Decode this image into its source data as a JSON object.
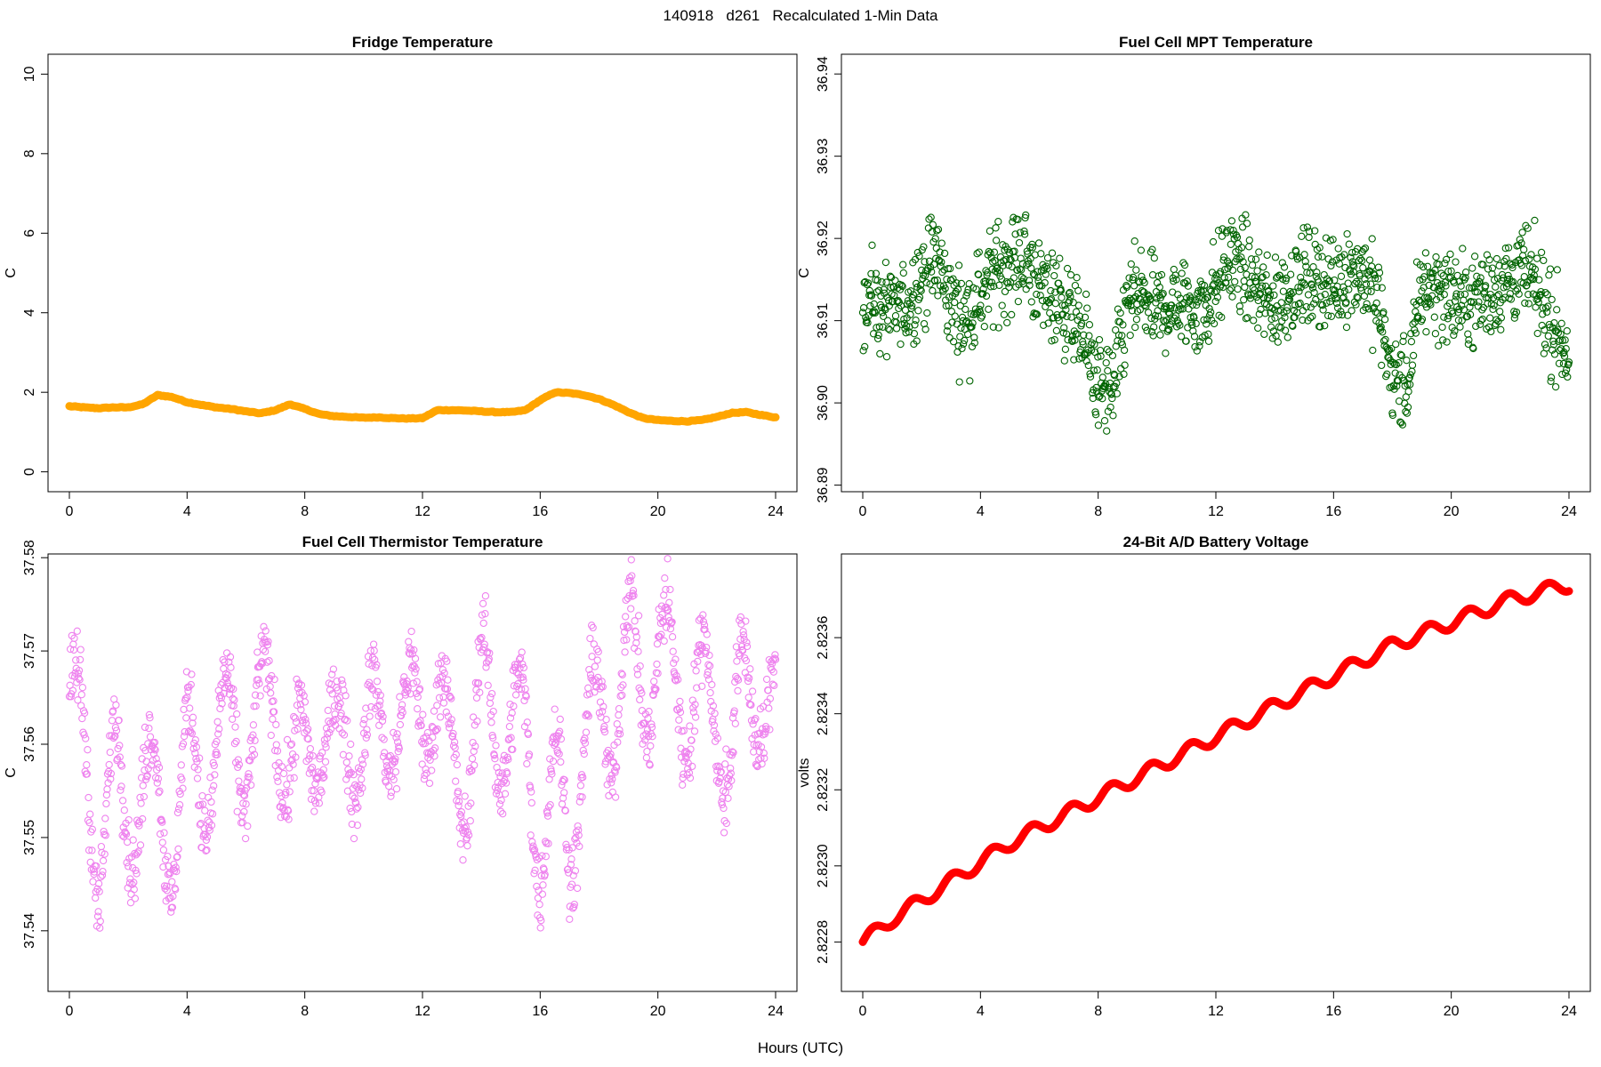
{
  "figure": {
    "title": "140918   d261   Recalculated 1-Min Data",
    "xlabel": "Hours (UTC)"
  },
  "chart_data": [
    {
      "type": "line",
      "title": "Fridge Temperature",
      "xlabel": "Hours (UTC)",
      "ylabel": "C",
      "xlim": [
        0,
        24
      ],
      "ylim": [
        -0.5,
        10.5
      ],
      "xticks": [
        0,
        4,
        8,
        12,
        16,
        20,
        24
      ],
      "xtick_labels": [
        "0",
        "4",
        "8",
        "12",
        "16",
        "20",
        "24"
      ],
      "yticks": [
        0,
        2,
        4,
        6,
        8,
        10
      ],
      "ytick_labels": [
        "0",
        "2",
        "4",
        "6",
        "8",
        "10"
      ],
      "color": "#FFA500",
      "series": [
        {
          "name": "Fridge Temperature",
          "x": [
            0,
            0.5,
            1,
            1.5,
            2,
            2.5,
            3,
            3.5,
            4,
            4.5,
            5,
            5.5,
            6,
            6.5,
            7,
            7.5,
            8,
            8.5,
            9,
            9.5,
            10,
            10.5,
            11,
            11.5,
            12,
            12.5,
            13,
            13.5,
            14,
            14.5,
            15,
            15.5,
            16,
            16.5,
            17,
            17.5,
            18,
            18.5,
            19,
            19.5,
            20,
            20.5,
            21,
            21.5,
            22,
            22.5,
            23,
            23.5,
            24
          ],
          "y": [
            1.65,
            1.62,
            1.6,
            1.62,
            1.62,
            1.7,
            1.93,
            1.88,
            1.75,
            1.68,
            1.62,
            1.58,
            1.52,
            1.47,
            1.55,
            1.7,
            1.58,
            1.45,
            1.4,
            1.38,
            1.36,
            1.37,
            1.35,
            1.34,
            1.35,
            1.55,
            1.55,
            1.54,
            1.52,
            1.5,
            1.5,
            1.55,
            1.8,
            2.0,
            1.98,
            1.93,
            1.83,
            1.68,
            1.5,
            1.35,
            1.3,
            1.28,
            1.27,
            1.3,
            1.38,
            1.48,
            1.5,
            1.43,
            1.37
          ]
        }
      ]
    },
    {
      "type": "scatter",
      "title": "Fuel Cell MPT Temperature",
      "xlabel": "Hours (UTC)",
      "ylabel": "C",
      "xlim": [
        0,
        24
      ],
      "ylim": [
        36.8892,
        36.9424
      ],
      "xticks": [
        0,
        4,
        8,
        12,
        16,
        20,
        24
      ],
      "xtick_labels": [
        "0",
        "4",
        "8",
        "12",
        "16",
        "20",
        "24"
      ],
      "yticks": [
        36.89,
        36.9,
        36.91,
        36.92,
        36.93,
        36.94
      ],
      "ytick_labels": [
        "36.89",
        "36.90",
        "36.91",
        "36.92",
        "36.93",
        "36.94"
      ],
      "color": "#006400",
      "trend": {
        "x": [
          0,
          0.5,
          1,
          1.5,
          2,
          2.5,
          3,
          3.5,
          4,
          4.5,
          5,
          5.5,
          6,
          6.5,
          7,
          7.5,
          8,
          8.5,
          9,
          9.5,
          10,
          10.5,
          11,
          11.5,
          12,
          12.5,
          13,
          13.5,
          14,
          14.5,
          15,
          15.5,
          16,
          16.5,
          17,
          17.5,
          18,
          18.5,
          19,
          19.5,
          20,
          20.5,
          21,
          21.5,
          22,
          22.5,
          23,
          23.5,
          24
        ],
        "y": [
          36.913,
          36.912,
          36.911,
          36.912,
          36.915,
          36.918,
          36.912,
          36.91,
          36.913,
          36.916,
          36.917,
          36.918,
          36.914,
          36.913,
          36.911,
          36.908,
          36.902,
          36.901,
          36.912,
          36.913,
          36.911,
          36.912,
          36.912,
          36.911,
          36.914,
          36.918,
          36.916,
          36.913,
          36.912,
          36.914,
          36.915,
          36.915,
          36.914,
          36.916,
          36.916,
          36.912,
          36.903,
          36.902,
          36.914,
          36.914,
          36.913,
          36.912,
          36.913,
          36.914,
          36.915,
          36.916,
          36.913,
          36.909,
          36.906
        ]
      },
      "spread": 0.0045,
      "n_points": 1440
    },
    {
      "type": "scatter",
      "title": "Fuel Cell Thermistor Temperature",
      "xlabel": "Hours (UTC)",
      "ylabel": "C",
      "xlim": [
        0,
        24
      ],
      "ylim": [
        37.5335,
        37.5804
      ],
      "xticks": [
        0,
        4,
        8,
        12,
        16,
        20,
        24
      ],
      "xtick_labels": [
        "0",
        "4",
        "8",
        "12",
        "16",
        "20",
        "24"
      ],
      "yticks": [
        37.54,
        37.55,
        37.56,
        37.57,
        37.58
      ],
      "ytick_labels": [
        "37.54",
        "37.55",
        "37.56",
        "37.57",
        "37.58"
      ],
      "color": "#EE82EE",
      "trend": {
        "x": [
          0,
          0.5,
          1,
          1.5,
          2,
          2.5,
          3,
          3.5,
          4,
          4.5,
          5,
          5.5,
          6,
          6.5,
          7,
          7.5,
          8,
          8.5,
          9,
          9.5,
          10,
          10.5,
          11,
          11.5,
          12,
          12.5,
          13,
          13.5,
          14,
          14.5,
          15,
          15.5,
          16,
          16.5,
          17,
          17.5,
          18,
          18.5,
          19,
          19.5,
          20,
          20.5,
          21,
          21.5,
          22,
          22.5,
          23,
          23.5,
          24
        ],
        "y": [
          37.565,
          37.558,
          37.549,
          37.556,
          37.552,
          37.556,
          37.553,
          37.55,
          37.558,
          37.556,
          37.56,
          37.561,
          37.56,
          37.562,
          37.566,
          37.556,
          37.558,
          37.563,
          37.558,
          37.562,
          37.56,
          37.561,
          37.564,
          37.561,
          37.565,
          37.565,
          37.557,
          37.557,
          37.565,
          37.562,
          37.562,
          37.56,
          37.55,
          37.555,
          37.55,
          37.56,
          37.563,
          37.563,
          37.57,
          37.566,
          37.57,
          37.567,
          37.565,
          37.565,
          37.563,
          37.559,
          37.566,
          37.566,
          37.563
        ]
      },
      "spread": 0.008,
      "n_points": 1440
    },
    {
      "type": "line",
      "title": "24-Bit A/D Battery Voltage",
      "xlabel": "Hours (UTC)",
      "ylabel": "volts",
      "xlim": [
        0,
        24
      ],
      "ylim": [
        2.82267,
        2.82382
      ],
      "xticks": [
        0,
        4,
        8,
        12,
        16,
        20,
        24
      ],
      "xtick_labels": [
        "0",
        "4",
        "8",
        "12",
        "16",
        "20",
        "24"
      ],
      "yticks": [
        2.8228,
        2.823,
        2.8232,
        2.8234,
        2.8236
      ],
      "ytick_labels": [
        "2.8228",
        "2.8230",
        "2.8232",
        "2.8234",
        "2.8236"
      ],
      "color": "#FF0000",
      "series": [
        {
          "name": "Battery Voltage",
          "x": [
            0,
            1,
            2,
            3,
            4,
            5,
            6,
            7,
            8,
            9,
            10,
            11,
            12,
            13,
            14,
            15,
            16,
            17,
            18,
            19,
            20,
            21,
            22,
            23,
            24
          ],
          "y": [
            2.8228,
            2.82286,
            2.82291,
            2.82296,
            2.82301,
            2.82306,
            2.8231,
            2.82314,
            2.82318,
            2.82322,
            2.82326,
            2.8233,
            2.82334,
            2.82338,
            2.82342,
            2.82346,
            2.8235,
            2.82354,
            2.82358,
            2.82361,
            2.82364,
            2.82367,
            2.8237,
            2.82372,
            2.82374
          ]
        }
      ],
      "ripple_period_hours": 1.35,
      "ripple_amplitude": 1.8e-05
    }
  ]
}
